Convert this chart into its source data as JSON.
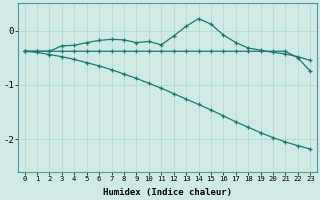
{
  "xlabel": "Humidex (Indice chaleur)",
  "xlim": [
    -0.5,
    23.5
  ],
  "ylim": [
    -2.6,
    0.5
  ],
  "yticks": [
    0,
    -1,
    -2
  ],
  "xticks": [
    0,
    1,
    2,
    3,
    4,
    5,
    6,
    7,
    8,
    9,
    10,
    11,
    12,
    13,
    14,
    15,
    16,
    17,
    18,
    19,
    20,
    21,
    22,
    23
  ],
  "bg_color": "#ceeae6",
  "line_color": "#1e7a70",
  "grid_color": "#b0d5d0",
  "line1_x": [
    0,
    1,
    2,
    3,
    4,
    5,
    6,
    7,
    8,
    9,
    10,
    11,
    12,
    13,
    14,
    15,
    16,
    17,
    18,
    19,
    20,
    21,
    22,
    23
  ],
  "line1_y": [
    -0.38,
    -0.38,
    -0.38,
    -0.28,
    -0.27,
    -0.22,
    -0.18,
    -0.16,
    -0.17,
    -0.22,
    -0.2,
    -0.26,
    -0.1,
    0.08,
    0.22,
    0.12,
    -0.08,
    -0.22,
    -0.32,
    -0.36,
    -0.4,
    -0.43,
    -0.48,
    -0.55
  ],
  "line2_x": [
    0,
    1,
    2,
    3,
    4,
    5,
    6,
    7,
    8,
    9,
    10,
    11,
    12,
    13,
    14,
    15,
    16,
    17,
    18,
    19,
    20,
    21,
    22,
    23
  ],
  "line2_y": [
    -0.38,
    -0.38,
    -0.38,
    -0.38,
    -0.38,
    -0.38,
    -0.38,
    -0.38,
    -0.38,
    -0.38,
    -0.38,
    -0.38,
    -0.38,
    -0.38,
    -0.38,
    -0.38,
    -0.38,
    -0.38,
    -0.38,
    -0.38,
    -0.38,
    -0.38,
    -0.5,
    -0.75
  ],
  "line3_x": [
    0,
    1,
    2,
    3,
    4,
    5,
    6,
    7,
    8,
    9,
    10,
    11,
    12,
    13,
    14,
    15,
    16,
    17,
    18,
    19,
    20,
    21,
    22,
    23
  ],
  "line3_y": [
    -0.38,
    -0.4,
    -0.44,
    -0.48,
    -0.53,
    -0.59,
    -0.65,
    -0.72,
    -0.8,
    -0.88,
    -0.97,
    -1.06,
    -1.16,
    -1.26,
    -1.36,
    -1.46,
    -1.57,
    -1.68,
    -1.78,
    -1.88,
    -1.97,
    -2.05,
    -2.12,
    -2.18
  ]
}
